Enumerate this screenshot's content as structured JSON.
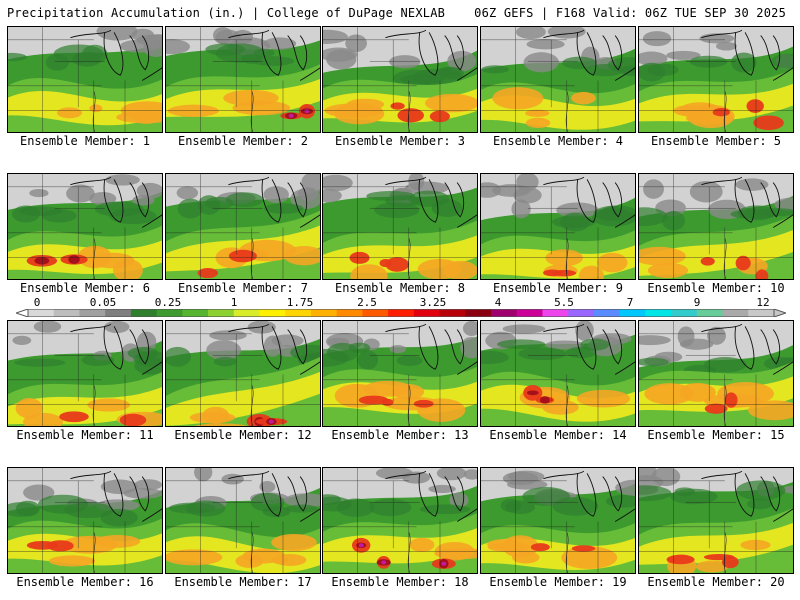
{
  "header": {
    "title": "Precipitation Accumulation (in.) | College of DuPage NEXLAB",
    "valid": "06Z GEFS | F168 Valid: 06Z TUE SEP 30 2025"
  },
  "member_prefix": "Ensemble Member:",
  "members": [
    {
      "label": "Ensemble Member: 1",
      "peak": 2.0
    },
    {
      "label": "Ensemble Member: 2",
      "peak": 5.5
    },
    {
      "label": "Ensemble Member: 3",
      "peak": 2.5
    },
    {
      "label": "Ensemble Member: 4",
      "peak": 2.0
    },
    {
      "label": "Ensemble Member: 5",
      "peak": 3.25
    },
    {
      "label": "Ensemble Member: 6",
      "peak": 4.0
    },
    {
      "label": "Ensemble Member: 7",
      "peak": 2.5
    },
    {
      "label": "Ensemble Member: 8",
      "peak": 3.25
    },
    {
      "label": "Ensemble Member: 9",
      "peak": 3.25
    },
    {
      "label": "Ensemble Member: 10",
      "peak": 2.5
    },
    {
      "label": "Ensemble Member: 11",
      "peak": 3.25
    },
    {
      "label": "Ensemble Member: 12",
      "peak": 5.5
    },
    {
      "label": "Ensemble Member: 13",
      "peak": 2.5
    },
    {
      "label": "Ensemble Member: 14",
      "peak": 4.0
    },
    {
      "label": "Ensemble Member: 15",
      "peak": 3.25
    },
    {
      "label": "Ensemble Member: 16",
      "peak": 3.25
    },
    {
      "label": "Ensemble Member: 17",
      "peak": 2.0
    },
    {
      "label": "Ensemble Member: 18",
      "peak": 5.5
    },
    {
      "label": "Ensemble Member: 19",
      "peak": 2.5
    },
    {
      "label": "Ensemble Member: 20",
      "peak": 3.25
    }
  ],
  "colorbar": {
    "labels": [
      "0",
      "0.05",
      "0.25",
      "1",
      "1.75",
      "2.5",
      "3.25",
      "4",
      "5.5",
      "7",
      "9",
      "12"
    ],
    "colors": [
      "#d9d9d9",
      "#bdbdbd",
      "#a0a0a0",
      "#7f7f7f",
      "#2f7f2f",
      "#3c9a2e",
      "#55b531",
      "#8cd12f",
      "#d8ec2a",
      "#fff000",
      "#ffd400",
      "#ffb000",
      "#ff8a00",
      "#ff5a00",
      "#ff1e00",
      "#e00010",
      "#b8000a",
      "#8a0010",
      "#a0006e",
      "#cc0099",
      "#ee44ee",
      "#9966ff",
      "#5a8cff",
      "#00c8ff",
      "#00e6e6",
      "#33cccc",
      "#66cc99",
      "#aaaaaa",
      "#c8c8c8"
    ]
  },
  "colors": {
    "light": "#d2d2d2",
    "grey": "#8a8a8a",
    "green_dark": "#2f7f2f",
    "green": "#3c9a2e",
    "green_light": "#6bc13a",
    "yellow": "#f2ea1e",
    "orange": "#f5a623",
    "red": "#e8391b",
    "darkred": "#a5101a",
    "magenta": "#c21aa0"
  }
}
